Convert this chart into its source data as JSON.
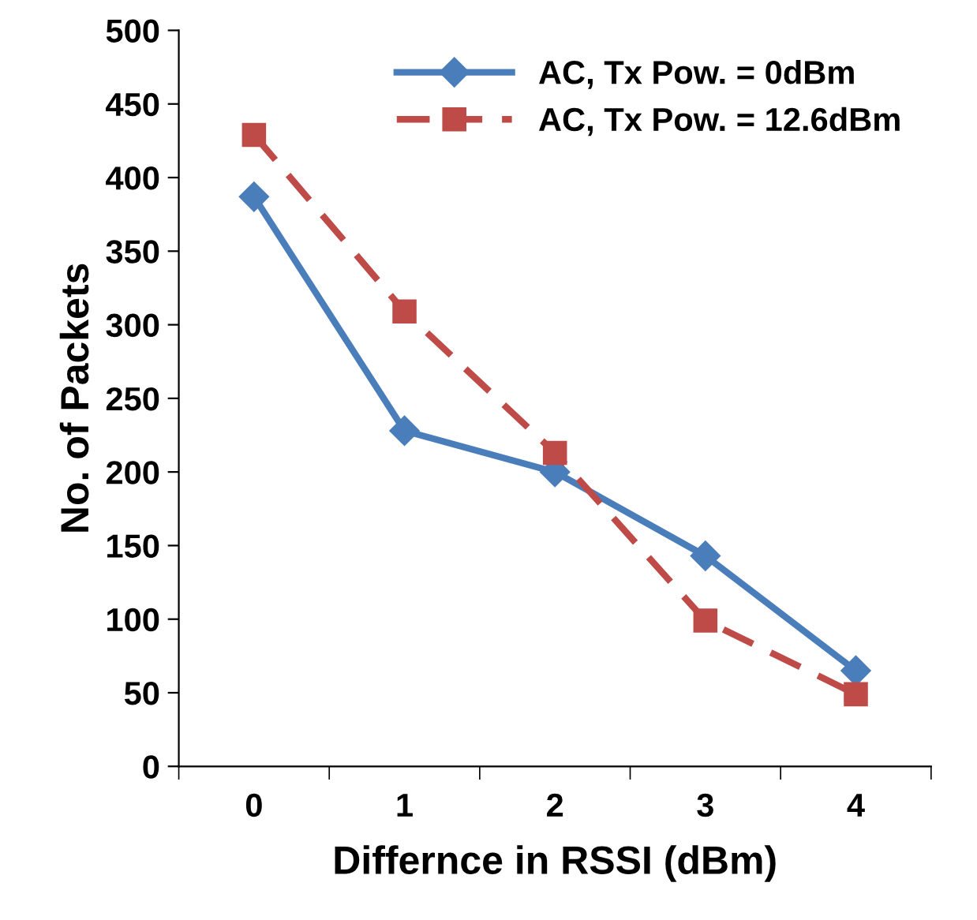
{
  "chart_data": {
    "type": "line",
    "xlabel": "Differnce in RSSI (dBm)",
    "ylabel": "No. of Packets",
    "categories": [
      "0",
      "1",
      "2",
      "3",
      "4"
    ],
    "series": [
      {
        "name": "AC, Tx Pow. = 0dBm",
        "color": "#4a7ebb",
        "values": [
          387,
          228,
          200,
          143,
          65
        ],
        "marker": "diamond",
        "line_style": "solid"
      },
      {
        "name": "AC, Tx Pow. = 12.6dBm",
        "color": "#be4b48",
        "values": [
          429,
          309,
          213,
          99,
          49
        ],
        "marker": "square",
        "line_style": "dashed"
      }
    ],
    "ylim": [
      0,
      500
    ],
    "yticks": [
      0,
      50,
      100,
      150,
      200,
      250,
      300,
      350,
      400,
      450,
      500
    ],
    "grid": false,
    "legend": "top right"
  }
}
